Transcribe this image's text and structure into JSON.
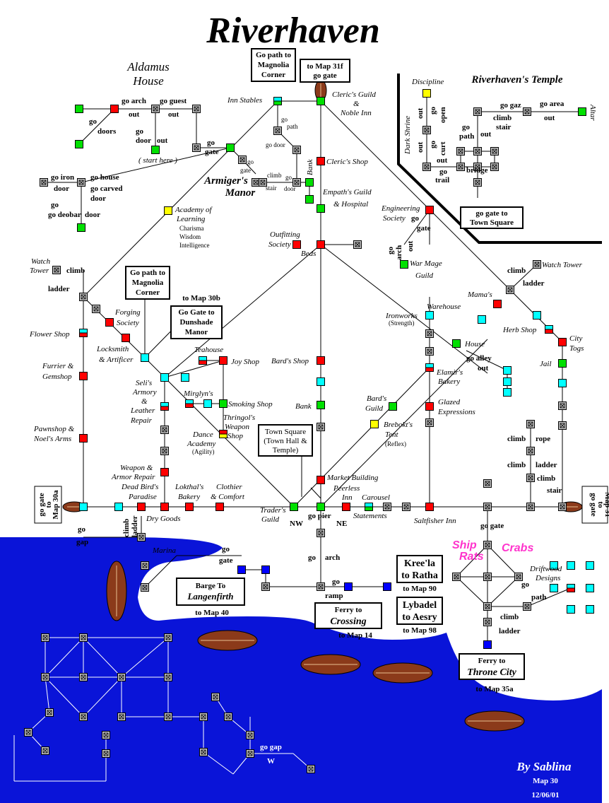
{
  "map": {
    "title": "Riverhaven",
    "signature": "By Sablina",
    "map_number": "Map 30",
    "date": "12/06/01"
  },
  "colors": {
    "water": "#0a14d8",
    "room_gray": "#c0c0c0",
    "room_green": "#00e000",
    "room_red": "#ff0000",
    "room_cyan": "#00ffff",
    "room_yellow": "#ffff00",
    "room_blue": "#0000ff",
    "annotation_magenta": "#ff33cc"
  },
  "regions": {
    "aldamus": [
      "Aldamus",
      "House"
    ],
    "armiger": [
      "Armiger's",
      "Manor"
    ],
    "temple": "Riverhaven's Temple"
  },
  "boxes": {
    "magnolia_top": [
      "Go path to",
      "Magnolia",
      "Corner"
    ],
    "map31f": [
      "to Map 31f",
      "go gate"
    ],
    "magnolia_mid": [
      "Go path to",
      "Magnolia",
      "Corner"
    ],
    "dunshade": [
      "Go Gate to",
      "Dunshade",
      "Manor"
    ],
    "temple_gate": [
      "go gate to",
      "Town Square"
    ],
    "town_square": [
      "Town Square",
      "(Town Hall &",
      "Temple)"
    ],
    "map30a": [
      "go gate",
      "to",
      "Map 30a"
    ],
    "map31": [
      "go gate",
      "to",
      "Map 31"
    ],
    "kreela": [
      "Kree'la",
      "to Ratha"
    ],
    "lybadel": [
      "Lybadel",
      "to Aesry"
    ],
    "barge": [
      "Barge To",
      "Langenfirth"
    ],
    "ferry_crossing": [
      "Ferry to",
      "Crossing"
    ],
    "ferry_throne": [
      "Ferry to",
      "Throne City"
    ]
  },
  "labels": {
    "inn_stables": "Inn Stables",
    "clerics_guild": [
      "Cleric's Guild",
      "&",
      "Noble Inn"
    ],
    "clerics_shop": "Cleric's Shop",
    "empaths_guild": [
      "Empath's Guild",
      "& Hospital"
    ],
    "bank_top": "Bank",
    "academy": [
      "Academy of",
      "Learning"
    ],
    "academy_stats": [
      "Charisma",
      "Wisdom",
      "Intelligence"
    ],
    "outfitting": [
      "Outfitting",
      "Society"
    ],
    "beds": "Beds",
    "engineering": [
      "Engineering",
      "Society"
    ],
    "war_mage": [
      "War Mage",
      "Guild"
    ],
    "watch_tower_w": [
      "Watch",
      "Tower"
    ],
    "watch_tower_e": "Watch Tower",
    "forging": [
      "Forging",
      "Society"
    ],
    "flower_shop": "Flower Shop",
    "locksmith": [
      "Locksmith",
      "& Artificer"
    ],
    "teahouse": "Teahouse",
    "joy_shop": "Joy Shop",
    "bards_shop": "Bard's Shop",
    "furrier": [
      "Furrier &",
      "Gemshop"
    ],
    "selis": [
      "Seli's",
      "Armory",
      "&",
      "Leather",
      "Repair"
    ],
    "mirglyns": "Mirglyn's",
    "smoking_shop": "Smoking Shop",
    "thringol": [
      "Thringol's",
      "Weapon",
      "Shop"
    ],
    "dance": [
      "Dance",
      "Academy"
    ],
    "dance_stat": "(Agility)",
    "bank_mid": "Bank",
    "pawnshop": [
      "Pawnshop &",
      "Noel's Arms"
    ],
    "weapon_armor": [
      "Weapon &",
      "Armor Repair"
    ],
    "dead_birds": [
      "Dead Bird's",
      "Paradise"
    ],
    "lokthals": [
      "Lokthal's",
      "Bakery"
    ],
    "clothier": [
      "Clothier",
      "& Comfort"
    ],
    "traders": [
      "Trader's",
      "Guild"
    ],
    "dry_goods": "Dry Goods",
    "market": "Market Building",
    "peerless": [
      "Peerless",
      "Inn"
    ],
    "carousel": "Carousel",
    "statements": "Statements",
    "saltfisher": "Saltfisher Inn",
    "bards_guild": [
      "Bard's",
      "Guild"
    ],
    "brebokts": [
      "Brebokt's",
      "Tent"
    ],
    "brebokts_stat": "(Reflex)",
    "ironworks": "Ironworks",
    "ironworks_stat": "(Strength)",
    "warehouse": "Warehouse",
    "house": "House",
    "elamirs": [
      "Elamir's",
      "Bakery"
    ],
    "glazed": [
      "Glazed",
      "Expressions"
    ],
    "mamas": "Mama's",
    "herb_shop": "Herb Shop",
    "city_togs": [
      "City",
      "Togs"
    ],
    "jail": "Jail",
    "marina": "Marina",
    "driftwood": [
      "Driftwood",
      "Designs"
    ],
    "discipline": "Discipline",
    "dark_shrine": "Dark Shrine",
    "altar": "Altar",
    "start_here": "( start here )",
    "ship_rats": [
      "Ship",
      "Rats"
    ],
    "crabs": "Crabs"
  },
  "destinations": {
    "map40": "to Map 40",
    "map14": "to Map 14",
    "map90": "to Map 90",
    "map98": "to Map 98",
    "map35a": "to Map 35a",
    "map30b": "to Map 30b"
  },
  "cmds": {
    "go_arch": "go arch",
    "go_guest": "go guest",
    "out": "out",
    "go": "go",
    "doors": "doors",
    "door": "door",
    "go_gate": "go gate",
    "go_iron": "go iron",
    "go_house": "go house",
    "go_carved": "go carved",
    "go_deobar": "go deobar",
    "gate": "gate",
    "path": "path",
    "go_door": "go door",
    "climb": "climb",
    "stair": "stair",
    "ladder": "ladder",
    "rope": "rope",
    "go_alley": "go alley",
    "go_pier": "go pier",
    "ramp": "ramp",
    "gap": "gap",
    "go_gap": "go gap",
    "w": "W",
    "nw": "NW",
    "ne": "NE",
    "go_gaz": "go gaz",
    "go_area": "go area",
    "open": "open",
    "curt": "curt",
    "trail": "trail",
    "bridge": "bridge",
    "go_path": "go path",
    "arch": "arch"
  }
}
